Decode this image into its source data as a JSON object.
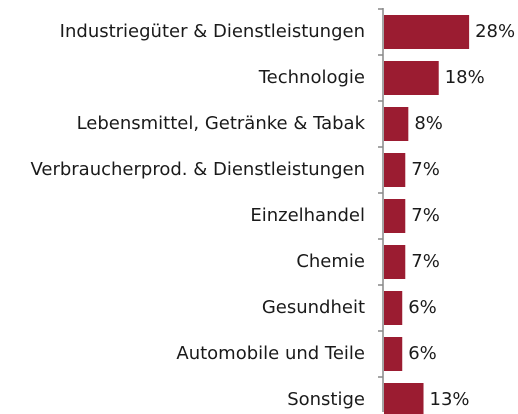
{
  "chart_data": {
    "type": "bar",
    "orientation": "horizontal",
    "categories": [
      "Industriegüter & Dienstleistungen",
      "Technologie",
      "Lebensmittel, Getränke & Tabak",
      "Verbraucherprod. & Dienstleistungen",
      "Einzelhandel",
      "Chemie",
      "Gesundheit",
      "Automobile und Teile",
      "Sonstige"
    ],
    "values": [
      28,
      18,
      8,
      7,
      7,
      7,
      6,
      6,
      13
    ],
    "value_labels": [
      "28%",
      "18%",
      "8%",
      "7%",
      "7%",
      "7%",
      "6%",
      "6%",
      "13%"
    ],
    "color": "#9b1c31"
  }
}
